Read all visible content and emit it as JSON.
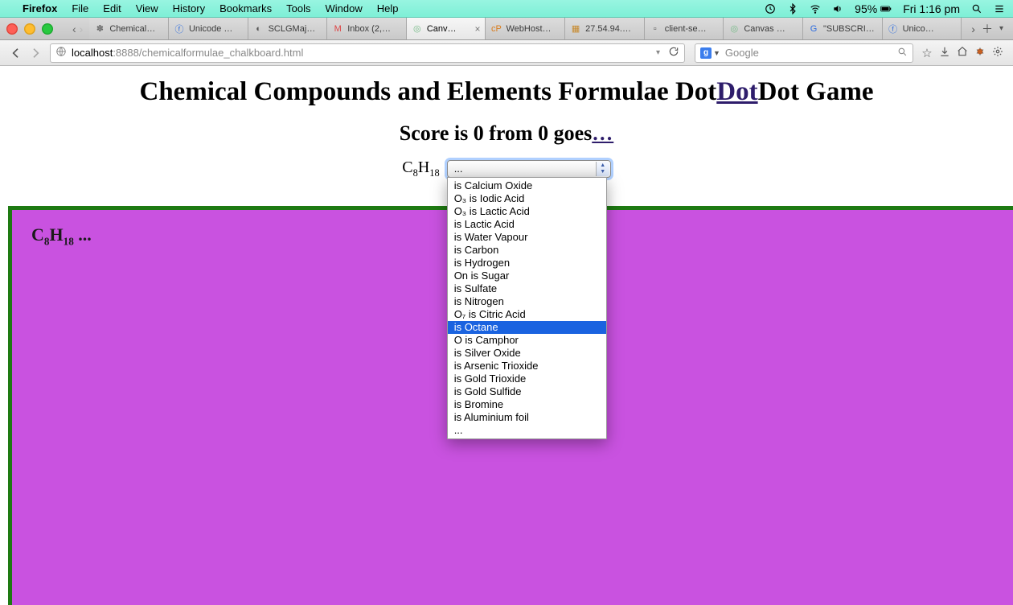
{
  "menubar": {
    "app_name": "Firefox",
    "items": [
      "File",
      "Edit",
      "View",
      "History",
      "Bookmarks",
      "Tools",
      "Window",
      "Help"
    ],
    "battery": "95%",
    "clock": "Fri 1:16 pm"
  },
  "tabs": {
    "list": [
      {
        "title": "Chemical…"
      },
      {
        "title": "Unicode …"
      },
      {
        "title": "SCLGMaj…"
      },
      {
        "title": "Inbox (2,…"
      },
      {
        "title": "Canv…",
        "active": true
      },
      {
        "title": "WebHost…"
      },
      {
        "title": "27.54.94.…"
      },
      {
        "title": "client-se…"
      },
      {
        "title": "Canvas …"
      },
      {
        "title": "\"SUBSCRI…"
      },
      {
        "title": "Unico…"
      }
    ]
  },
  "toolbar": {
    "url_host": "localhost",
    "url_port": ":8888",
    "url_path": "/chemicalformulae_chalkboard.html",
    "search_placeholder": "Google"
  },
  "page": {
    "title_pre": "Chemical Compounds and Elements Formulae Dot",
    "title_link": "Dot",
    "title_post": "Dot Game",
    "score_pre": "Score is 0 from 0 goes",
    "score_link": "…",
    "formula_html": "C<sub>8</sub>H<sub>18</sub>",
    "select_value": "...",
    "chalk_html": "C<sub>8</sub>H<sub>18</sub> ...",
    "dropdown": {
      "highlight_index": 11,
      "options": [
        "is Calcium Oxide",
        "O₃ is Iodic Acid",
        "O₃ is Lactic Acid",
        "is Lactic Acid",
        "is Water Vapour",
        "is Carbon",
        "is Hydrogen",
        "On is Sugar",
        "is Sulfate",
        "is Nitrogen",
        "O₇ is Citric Acid",
        "is Octane",
        "O is Camphor",
        "is Silver Oxide",
        "is Arsenic Trioxide",
        "is Gold Trioxide",
        "is Gold Sulfide",
        "is Bromine",
        "is Aluminium foil",
        "..."
      ]
    },
    "colors": {
      "chalkboard_bg": "#c952e0",
      "chalkboard_border": "#1e7a12",
      "link_color": "#2e1d6b",
      "dropdown_highlight": "#1a63e0"
    }
  }
}
